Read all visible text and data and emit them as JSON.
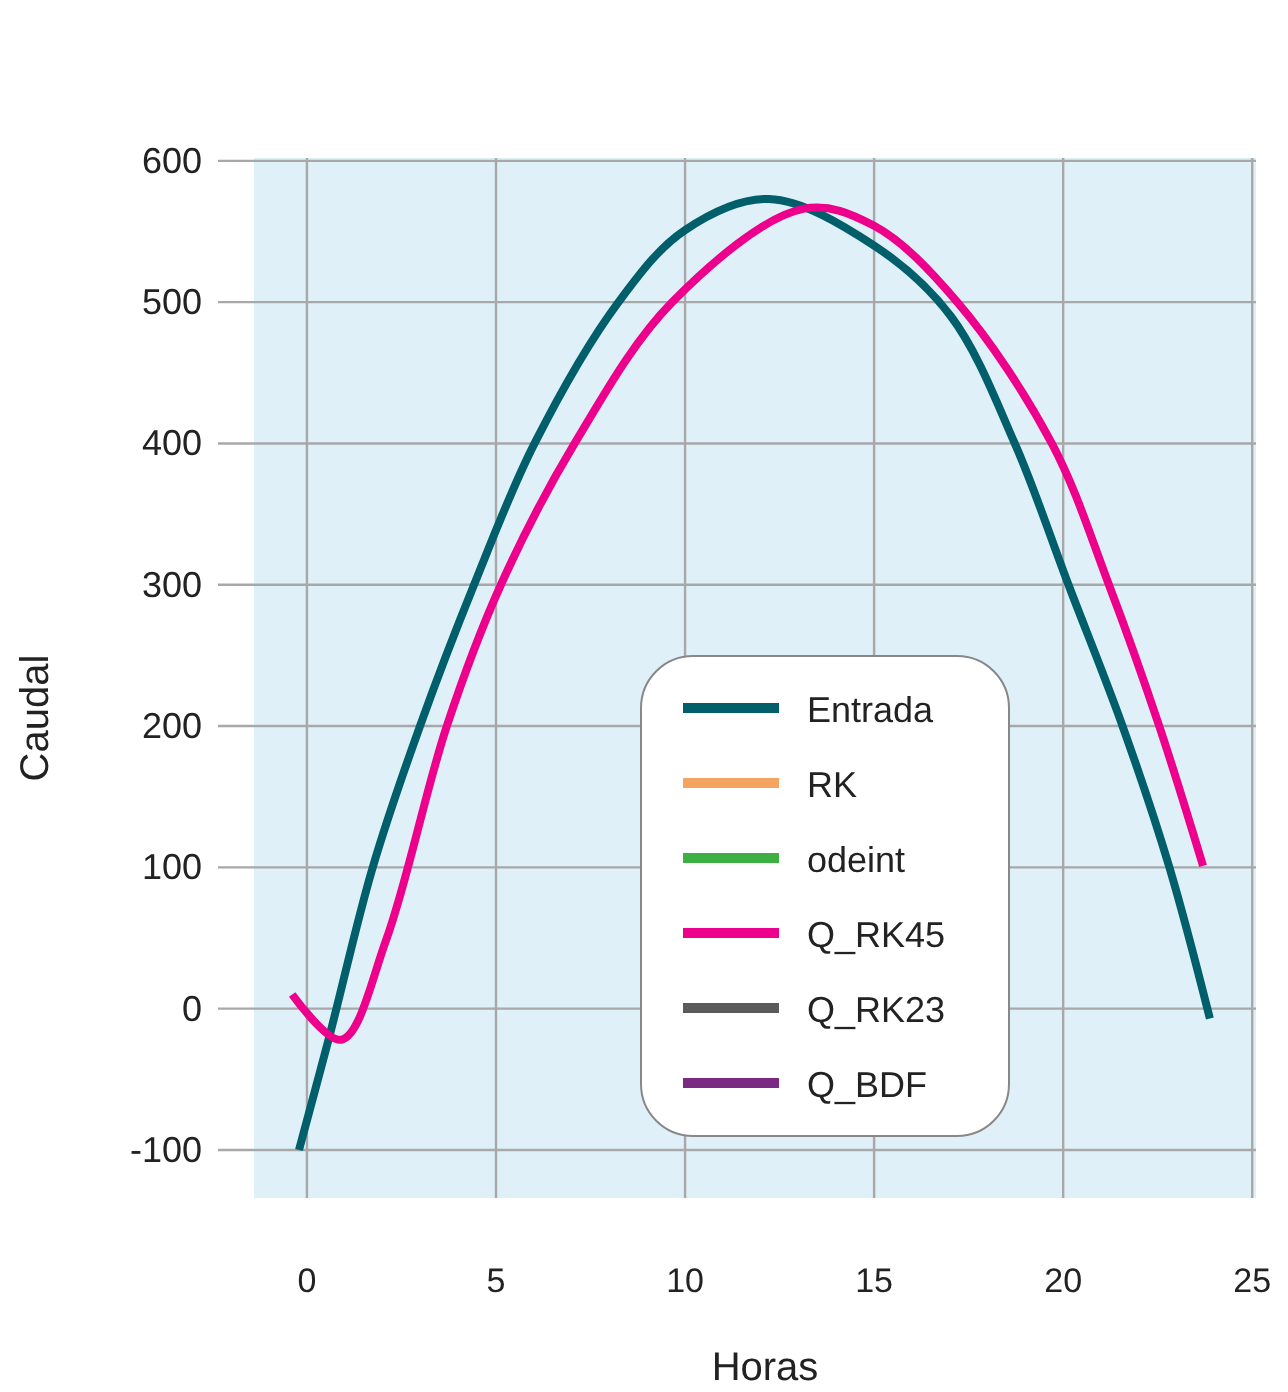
{
  "chart_data": {
    "type": "line",
    "xlabel": "Horas",
    "ylabel": "Caudal",
    "xlim": [
      -1.4,
      25.1
    ],
    "ylim": [
      -134,
      602
    ],
    "xticks": [
      0,
      5,
      10,
      15,
      20,
      25
    ],
    "yticks": [
      -100,
      0,
      100,
      200,
      300,
      400,
      500,
      600
    ],
    "grid": true,
    "legend": "bottom",
    "line_style": "solid",
    "marker": "none",
    "series": [
      {
        "name": "Entrada",
        "color": "#005f6b",
        "x": [
          -0.21,
          0.59,
          1.74,
          2.99,
          4.42,
          6.02,
          8.24,
          10,
          12.22,
          15,
          17.03,
          18.72,
          20.14,
          21.57,
          22.81,
          23.88
        ],
        "values": [
          -100,
          -20,
          100,
          200,
          300,
          400,
          500,
          551,
          573,
          540,
          490,
          400,
          300,
          200,
          100,
          -7
        ]
      },
      {
        "name": "RK",
        "color": "#f4a460"
      },
      {
        "name": "odeint",
        "color": "#3cb043"
      },
      {
        "name": "Q_RK45",
        "color": "#ec008c",
        "x": [
          -0.39,
          0.91,
          2.1,
          3.7,
          5.13,
          7.08,
          9.66,
          13.12,
          15,
          17.2,
          19.7,
          21.21,
          22.54,
          23.7
        ],
        "values": [
          10,
          -22,
          49,
          200,
          300,
          400,
          500,
          566,
          554,
          500,
          400,
          300,
          200,
          101
        ]
      },
      {
        "name": "Q_RK23",
        "color": "#5a5a5a"
      },
      {
        "name": "Q_BDF",
        "color": "#7b2a83"
      }
    ]
  }
}
